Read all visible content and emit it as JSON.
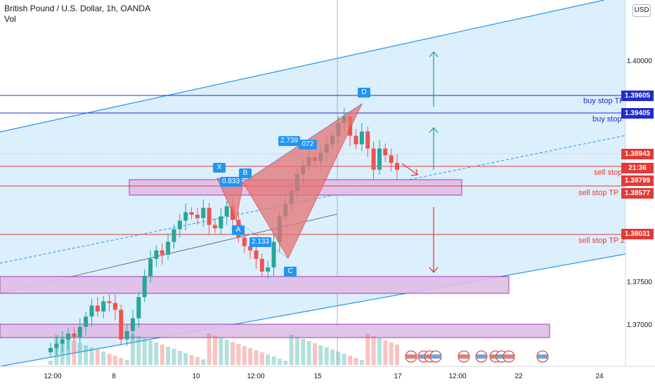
{
  "header": {
    "title": "British Pound / U.S. Dollar, 1h, OANDA",
    "volume_label": "Vol",
    "currency_button": "USD"
  },
  "colors": {
    "channel_fill": "#d6ecfb",
    "channel_line": "#2196f3",
    "bullish": "#26a69a",
    "bearish": "#ef5350",
    "pattern_fill": "#e57373",
    "zone_fill": "#e1bee7",
    "zone_border": "#9c27b0",
    "blue_level": "#1e2bd0",
    "red_level": "#e53935",
    "arrow_up": "#26a69a",
    "arrow_down": "#e53935",
    "badge": "#2196f3"
  },
  "chart_data": {
    "type": "candlestick",
    "symbol": "GBPUSD",
    "interval": "1h",
    "x_ticks": [
      "12:00",
      "8",
      "10",
      "12:00",
      "15",
      "17",
      "12:00",
      "22",
      "24"
    ],
    "y_ticks": [
      "1.40000",
      "1.37500",
      "1.37000"
    ],
    "ylim": [
      1.3665,
      1.4095
    ],
    "price_labels": [
      {
        "value": "1.39605",
        "color": "blue"
      },
      {
        "value": "1.39405",
        "color": "blue"
      },
      {
        "value": "1.38943",
        "color": "red"
      },
      {
        "value": "21:36",
        "color": "red"
      },
      {
        "value": "1.38799",
        "color": "red"
      },
      {
        "value": "1.38577",
        "color": "red"
      },
      {
        "value": "1.38031",
        "color": "red"
      }
    ],
    "level_labels": [
      {
        "text": "buy stop TP",
        "color": "blue"
      },
      {
        "text": "buy stop",
        "color": "blue"
      },
      {
        "text": "sell stop",
        "color": "red"
      },
      {
        "text": "sell stop TP 1",
        "color": "red"
      },
      {
        "text": "sell stop TP 2",
        "color": "red"
      }
    ],
    "pattern_points": [
      "X",
      "A",
      "B",
      "C",
      "D"
    ],
    "pattern_ratios": [
      "0.833",
      "2.133",
      "2.739",
      "072"
    ],
    "series": [
      {
        "close": [
          1.3685,
          1.369,
          1.3695,
          1.3702,
          1.3698,
          1.371,
          1.3722,
          1.3735,
          1.3728,
          1.374,
          1.3738,
          1.373,
          1.3695,
          1.3705,
          1.372,
          1.3745,
          1.377,
          1.379,
          1.38,
          1.3795,
          1.381,
          1.3825,
          1.3835,
          1.3845,
          1.3842,
          1.3838,
          1.385,
          1.383,
          1.3826,
          1.384,
          1.3852,
          1.3836,
          1.3815,
          1.3805,
          1.38,
          1.379,
          1.3775,
          1.378,
          1.381,
          1.384,
          1.3855,
          1.387,
          1.389,
          1.39,
          1.391,
          1.3905,
          1.3915,
          1.3925,
          1.3935,
          1.395,
          1.3958,
          1.3935,
          1.3925,
          1.394,
          1.392,
          1.3895,
          1.392,
          1.3912,
          1.3903,
          1.3895
        ]
      }
    ]
  }
}
